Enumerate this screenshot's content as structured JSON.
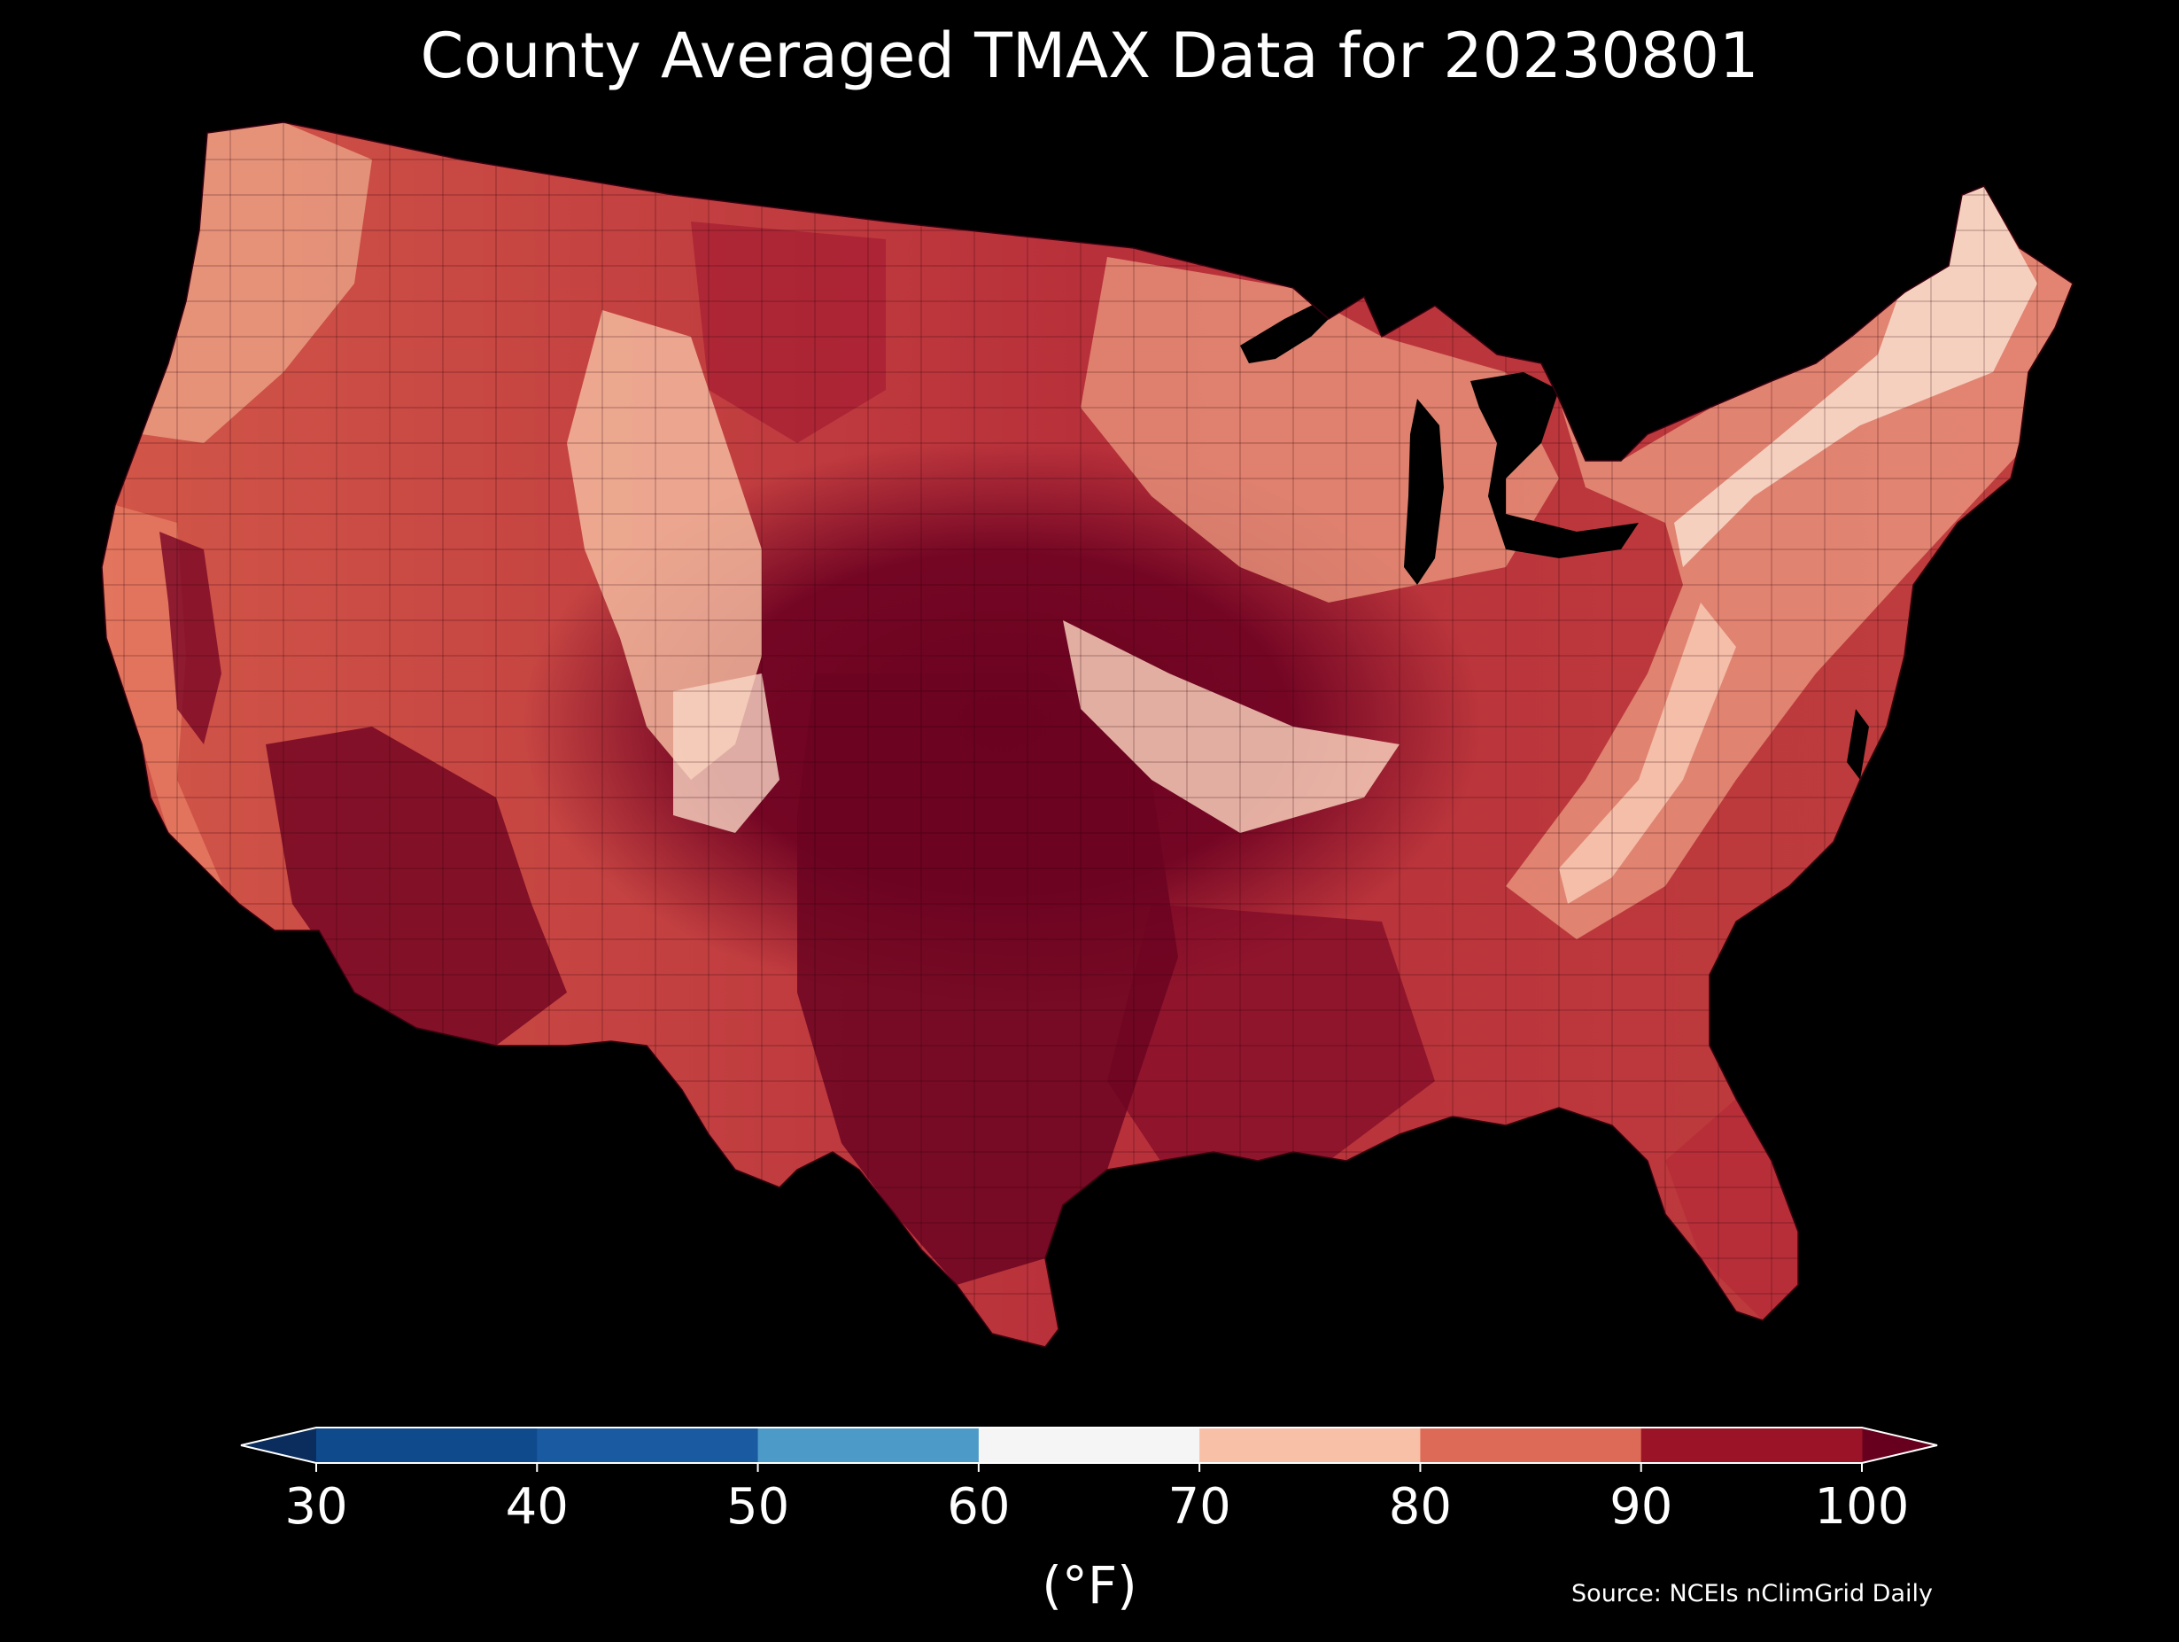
{
  "title": "County Averaged TMAX Data for 20230801",
  "colorbar": {
    "unit_label": "(°F)",
    "extend": "both",
    "ticks": [
      "30",
      "40",
      "50",
      "60",
      "70",
      "80",
      "90",
      "100"
    ],
    "under_color": "#0a2d5e",
    "over_color": "#67001f",
    "bins": [
      {
        "range": [
          30,
          40
        ],
        "color": "#0f4a8c"
      },
      {
        "range": [
          40,
          50
        ],
        "color": "#1a5aa0"
      },
      {
        "range": [
          50,
          60
        ],
        "color": "#4b9ac8"
      },
      {
        "range": [
          60,
          70
        ],
        "color": "#f5f5f5"
      },
      {
        "range": [
          70,
          80
        ],
        "color": "#f8c0a6"
      },
      {
        "range": [
          80,
          90
        ],
        "color": "#dd6a56"
      },
      {
        "range": [
          90,
          100
        ],
        "color": "#9b1326"
      }
    ]
  },
  "source": "Source: NCEIs nClimGrid Daily"
}
